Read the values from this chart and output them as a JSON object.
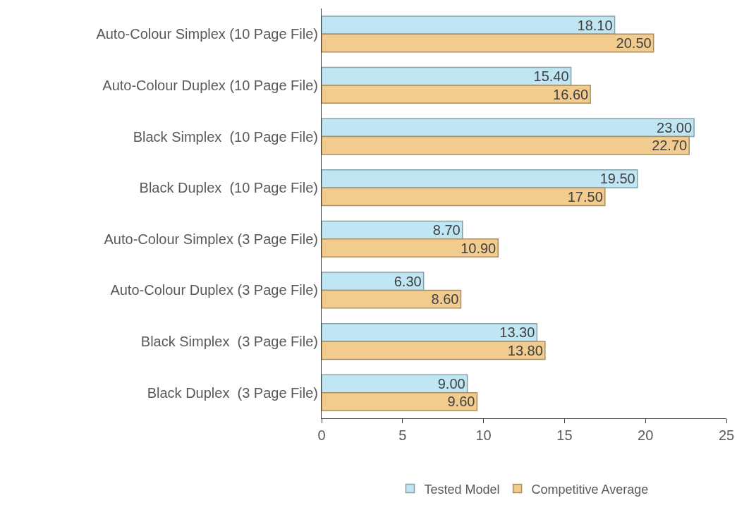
{
  "chart_data": {
    "type": "bar",
    "orientation": "horizontal",
    "categories": [
      "Auto-Colour Simplex (10 Page File)",
      "Auto-Colour Duplex (10 Page File)",
      "Black Simplex  (10 Page File)",
      "Black Duplex  (10 Page File)",
      "Auto-Colour Simplex (3 Page File)",
      "Auto-Colour Duplex (3 Page File)",
      "Black Simplex  (3 Page File)",
      "Black Duplex  (3 Page File)"
    ],
    "series": [
      {
        "name": "Tested Model",
        "color": "#bfe6f2",
        "values": [
          18.1,
          15.4,
          23.0,
          19.5,
          8.7,
          6.3,
          13.3,
          9.0
        ],
        "value_labels": [
          "18.10",
          "15.40",
          "23.00",
          "19.50",
          "8.70",
          "6.30",
          "13.30",
          "9.00"
        ]
      },
      {
        "name": "Competitive Average",
        "color": "#f2cb8e",
        "values": [
          20.5,
          16.6,
          22.7,
          17.5,
          10.9,
          8.6,
          13.8,
          9.6
        ],
        "value_labels": [
          "20.50",
          "16.60",
          "22.70",
          "17.50",
          "10.90",
          "8.60",
          "13.80",
          "9.60"
        ]
      }
    ],
    "xlim": [
      0,
      25
    ],
    "xticks": [
      0,
      5,
      10,
      15,
      20,
      25
    ],
    "grid": false,
    "legend": "bottom"
  }
}
